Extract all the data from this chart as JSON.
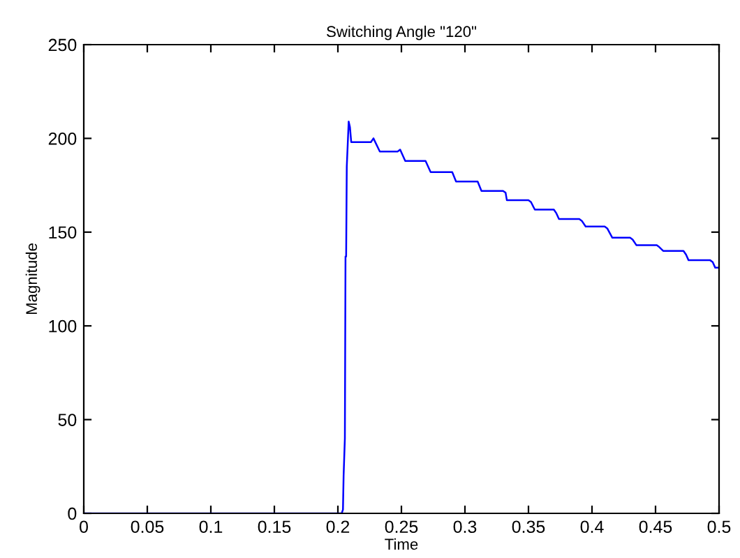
{
  "chart_data": {
    "type": "line",
    "title": "Switching Angle \"120\"",
    "xlabel": "Time",
    "ylabel": "Magnitude",
    "xlim": [
      0,
      0.5
    ],
    "ylim": [
      0,
      250
    ],
    "xticks": [
      0,
      0.05,
      0.1,
      0.15,
      0.2,
      0.25,
      0.3,
      0.35,
      0.4,
      0.45,
      {
        "value": 0.5,
        "label": "0.5"
      }
    ],
    "yticks": [
      0,
      50,
      100,
      150,
      200,
      250
    ],
    "grid": false,
    "legend": false,
    "marker": "none",
    "line_style": "solid",
    "series": [
      {
        "color": "#0000ff",
        "x": [
          0,
          0.203,
          0.204,
          0.2045,
          0.2055,
          0.206,
          0.2065,
          0.207,
          0.2085,
          0.2095,
          0.2105,
          0.213,
          0.226,
          0.228,
          0.233,
          0.247,
          0.249,
          0.253,
          0.267,
          0.269,
          0.273,
          0.288,
          0.29,
          0.293,
          0.308,
          0.31,
          0.313,
          0.33,
          0.332,
          0.333,
          0.35,
          0.352,
          0.355,
          0.37,
          0.372,
          0.374,
          0.39,
          0.392,
          0.395,
          0.41,
          0.412,
          0.416,
          0.43,
          0.432,
          0.435,
          0.451,
          0.453,
          0.456,
          0.472,
          0.474,
          0.476,
          0.493,
          0.495,
          0.497,
          0.5
        ],
        "values": [
          0,
          0,
          2,
          20,
          40,
          137,
          137,
          185,
          209,
          206,
          198,
          198,
          198,
          200,
          193,
          193,
          194,
          188,
          188,
          188,
          182,
          182,
          182,
          177,
          177,
          177,
          172,
          172,
          171,
          167,
          167,
          166,
          162,
          162,
          160,
          157,
          157,
          156,
          153,
          153,
          152,
          147,
          147,
          146,
          143,
          143,
          142,
          140,
          140,
          138,
          135,
          135,
          134,
          131,
          131
        ]
      }
    ]
  }
}
